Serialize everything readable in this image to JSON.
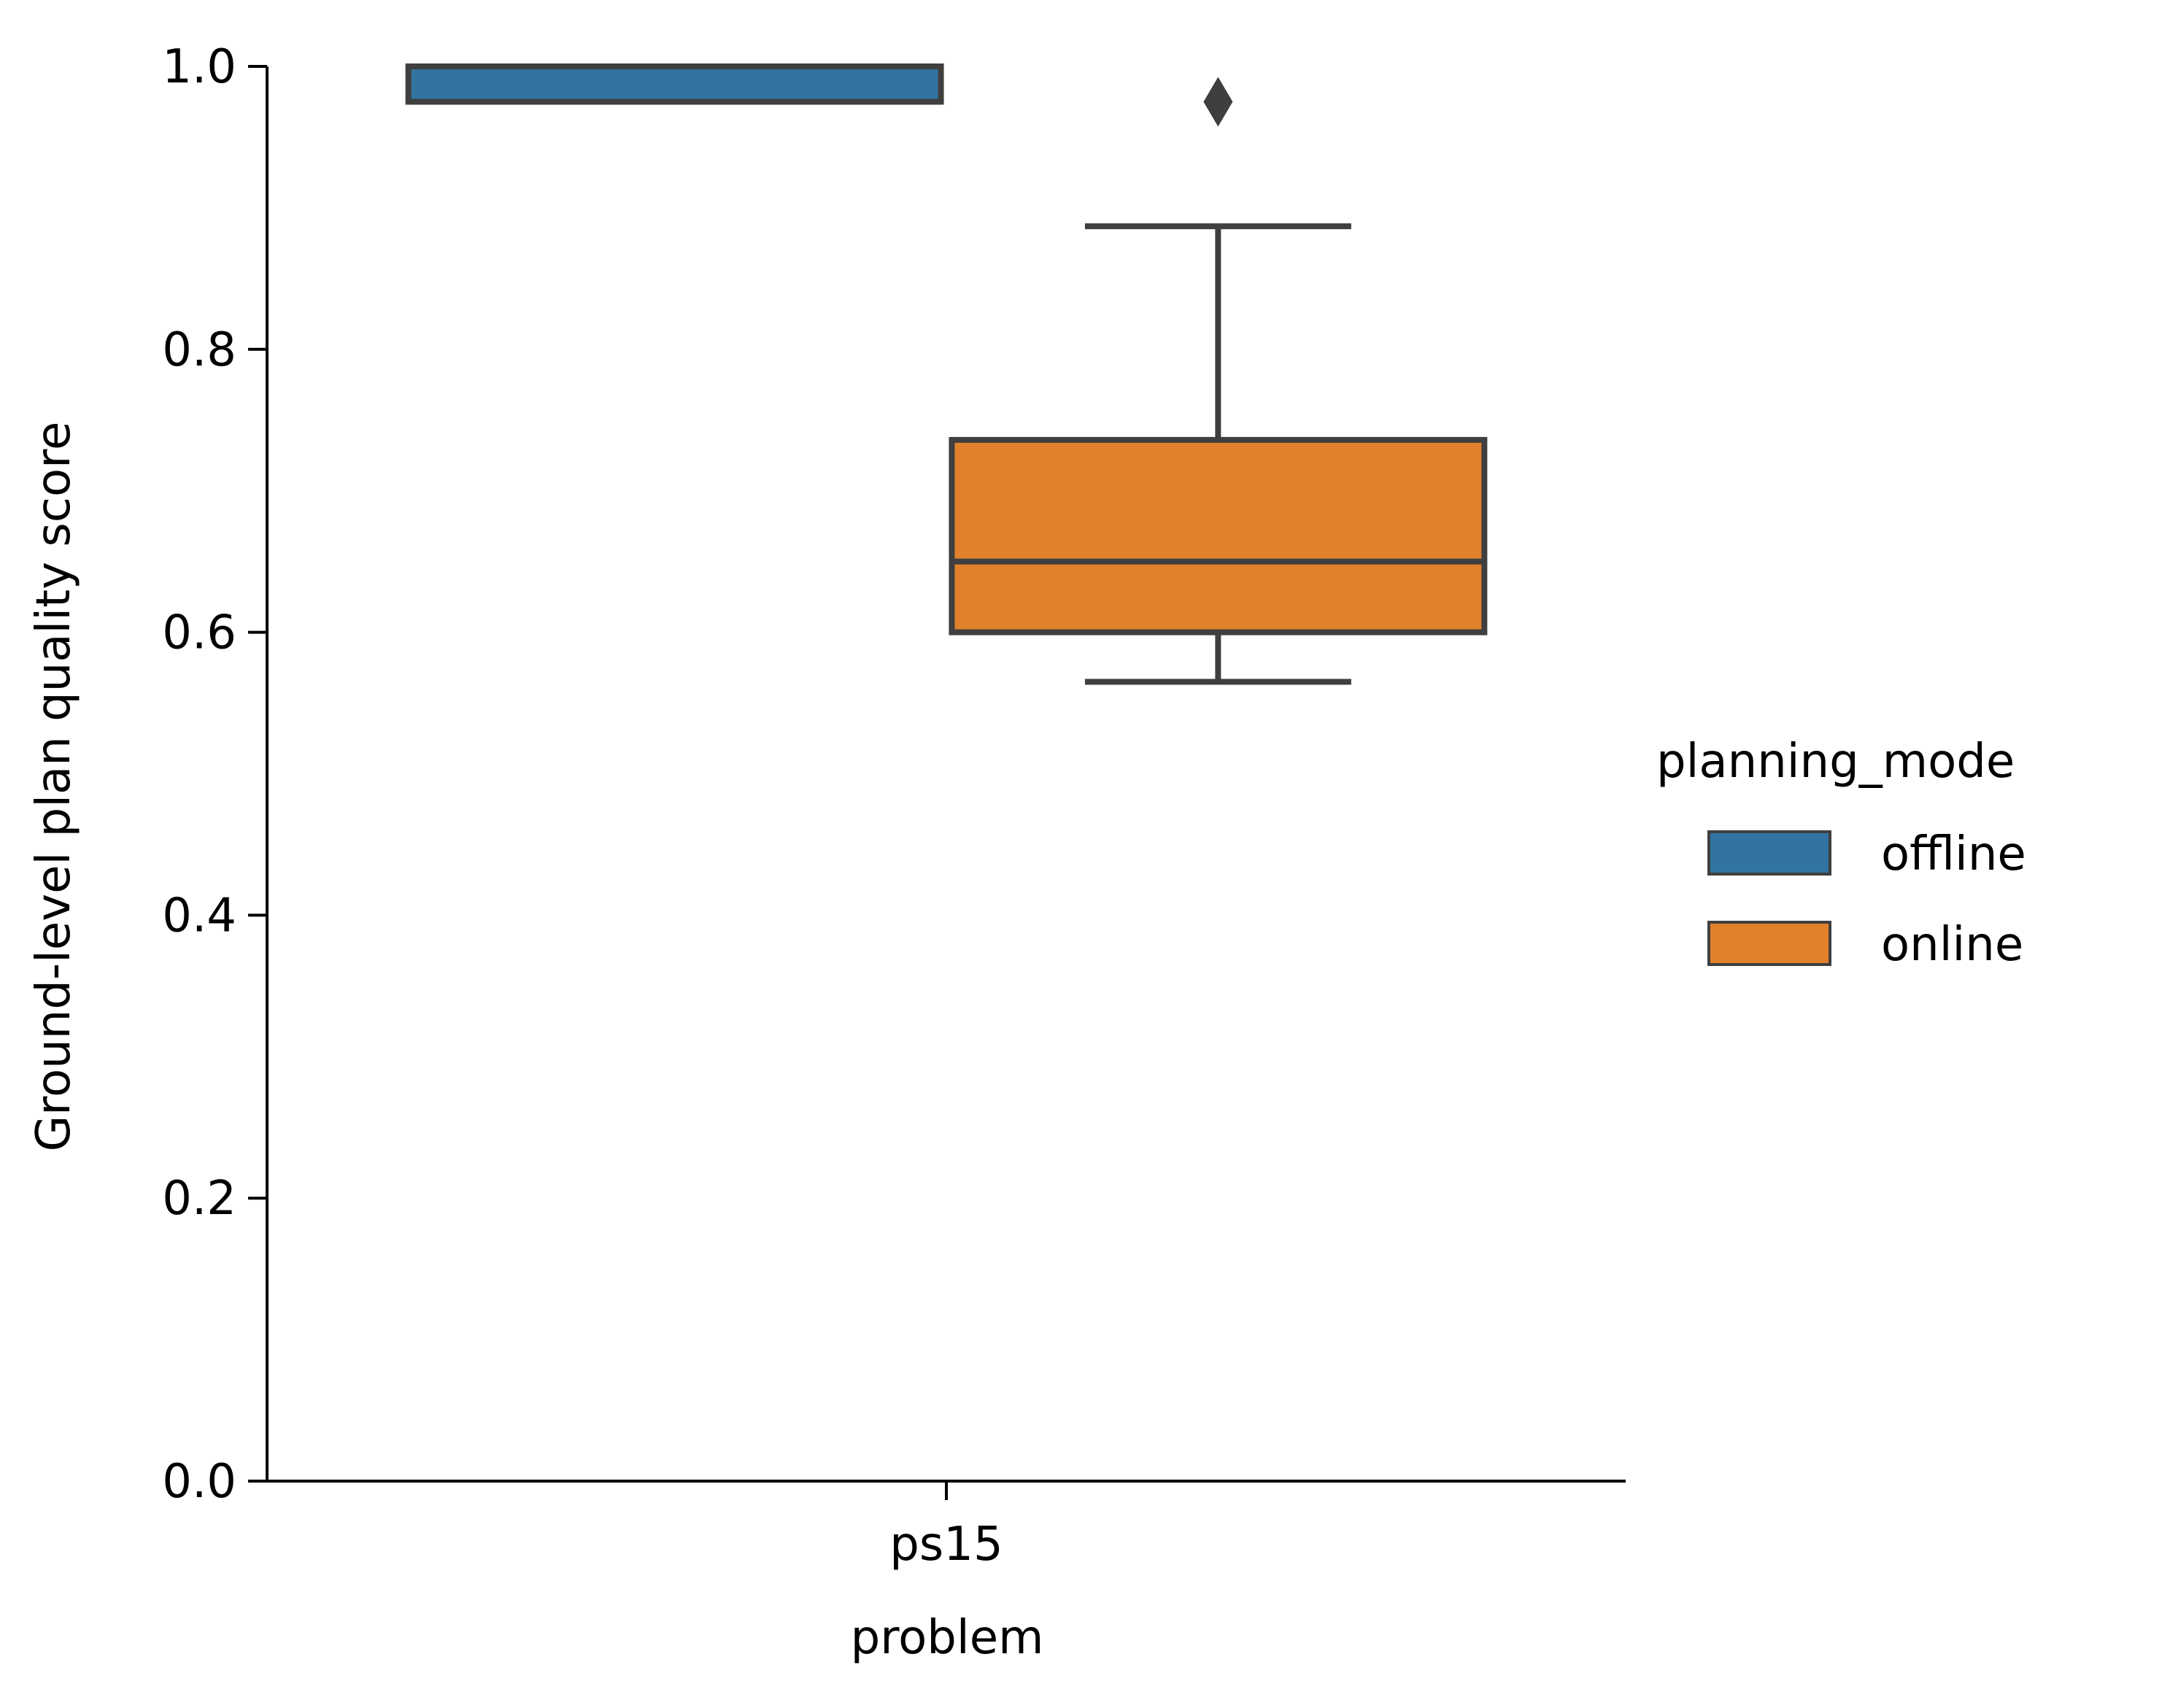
{
  "chart_data": {
    "type": "box",
    "xlabel": "problem",
    "ylabel": "Ground-level plan quality score",
    "ylim": [
      0.0,
      1.0
    ],
    "yticks": [
      0.0,
      0.2,
      0.4,
      0.6,
      0.8,
      1.0
    ],
    "ytick_labels": [
      "0.0",
      "0.2",
      "0.4",
      "0.6",
      "0.8",
      "1.0"
    ],
    "categories": [
      "ps15"
    ],
    "grid": false,
    "legend": {
      "title": "planning_mode",
      "placement": "right"
    },
    "series": [
      {
        "name": "offline",
        "color": "#3274a1",
        "boxes": [
          {
            "category": "ps15",
            "whisker_low": 0.975,
            "q1": 0.975,
            "median": 0.975,
            "q3": 1.0,
            "whisker_high": 1.0,
            "outliers": []
          }
        ]
      },
      {
        "name": "online",
        "color": "#e1812c",
        "boxes": [
          {
            "category": "ps15",
            "whisker_low": 0.565,
            "q1": 0.6,
            "median": 0.65,
            "q3": 0.736,
            "whisker_high": 0.887,
            "outliers": [
              0.975
            ]
          }
        ]
      }
    ]
  }
}
